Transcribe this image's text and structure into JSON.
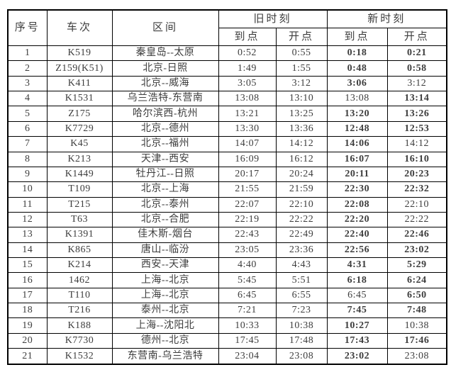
{
  "page": {
    "background": "#ffffff",
    "border_color": "#000000",
    "text_color": "#3d3d3d",
    "changed_time_color": "#000000"
  },
  "table": {
    "headers": {
      "serial": "序号",
      "train": "车次",
      "route": "区间",
      "old_group": "旧时刻",
      "new_group": "新时刻",
      "arrive": "到点",
      "depart": "开点"
    },
    "rows": [
      {
        "no": "1",
        "train": "K519",
        "route": "秦皇岛--太原",
        "old_arrive": "0:52",
        "old_depart": "0:55",
        "new_arrive": "0:18",
        "new_depart": "0:21",
        "new_arrive_changed": true,
        "new_depart_changed": true
      },
      {
        "no": "2",
        "train": "Z159(K51)",
        "route": "北京-日照",
        "old_arrive": "1:49",
        "old_depart": "1:55",
        "new_arrive": "0:48",
        "new_depart": "0:58",
        "new_arrive_changed": true,
        "new_depart_changed": true
      },
      {
        "no": "3",
        "train": "K411",
        "route": "北京--威海",
        "old_arrive": "3:05",
        "old_depart": "3:12",
        "new_arrive": "3:06",
        "new_depart": "3:12",
        "new_arrive_changed": true,
        "new_depart_changed": false
      },
      {
        "no": "4",
        "train": "K1531",
        "route": "乌兰浩特-东营南",
        "old_arrive": "13:08",
        "old_depart": "13:10",
        "new_arrive": "13:08",
        "new_depart": "13:14",
        "new_arrive_changed": false,
        "new_depart_changed": true
      },
      {
        "no": "5",
        "train": "Z175",
        "route": "哈尔滨西-杭州",
        "old_arrive": "13:21",
        "old_depart": "13:25",
        "new_arrive": "13:20",
        "new_depart": "13:26",
        "new_arrive_changed": true,
        "new_depart_changed": true
      },
      {
        "no": "6",
        "train": "K7729",
        "route": "北京--德州",
        "old_arrive": "13:30",
        "old_depart": "13:36",
        "new_arrive": "12:48",
        "new_depart": "12:53",
        "new_arrive_changed": true,
        "new_depart_changed": true
      },
      {
        "no": "7",
        "train": "K45",
        "route": "北京--福州",
        "old_arrive": "14:07",
        "old_depart": "14:12",
        "new_arrive": "14:06",
        "new_depart": "14:12",
        "new_arrive_changed": true,
        "new_depart_changed": false
      },
      {
        "no": "8",
        "train": "K213",
        "route": "天津--西安",
        "old_arrive": "16:09",
        "old_depart": "16:12",
        "new_arrive": "16:07",
        "new_depart": "16:10",
        "new_arrive_changed": true,
        "new_depart_changed": true
      },
      {
        "no": "9",
        "train": "K1449",
        "route": "牡丹江--日照",
        "old_arrive": "20:17",
        "old_depart": "20:24",
        "new_arrive": "20:11",
        "new_depart": "20:23",
        "new_arrive_changed": true,
        "new_depart_changed": true
      },
      {
        "no": "10",
        "train": "T109",
        "route": "北京--上海",
        "old_arrive": "21:55",
        "old_depart": "21:59",
        "new_arrive": "22:30",
        "new_depart": "22:32",
        "new_arrive_changed": true,
        "new_depart_changed": true
      },
      {
        "no": "11",
        "train": "T215",
        "route": "北京--泰州",
        "old_arrive": "22:07",
        "old_depart": "22:10",
        "new_arrive": "22:08",
        "new_depart": "22:10",
        "new_arrive_changed": true,
        "new_depart_changed": false
      },
      {
        "no": "12",
        "train": "T63",
        "route": "北京--合肥",
        "old_arrive": "22:19",
        "old_depart": "22:22",
        "new_arrive": "22:20",
        "new_depart": "22:22",
        "new_arrive_changed": true,
        "new_depart_changed": false
      },
      {
        "no": "13",
        "train": "K1391",
        "route": "佳木斯-烟台",
        "old_arrive": "22:43",
        "old_depart": "22:49",
        "new_arrive": "22:40",
        "new_depart": "22:46",
        "new_arrive_changed": true,
        "new_depart_changed": true
      },
      {
        "no": "14",
        "train": "K865",
        "route": "唐山--临汾",
        "old_arrive": "23:05",
        "old_depart": "23:36",
        "new_arrive": "22:56",
        "new_depart": "23:02",
        "new_arrive_changed": true,
        "new_depart_changed": true
      },
      {
        "no": "15",
        "train": "K214",
        "route": "西安--天津",
        "old_arrive": "4:40",
        "old_depart": "4:43",
        "new_arrive": "4:31",
        "new_depart": "5:29",
        "new_arrive_changed": true,
        "new_depart_changed": true
      },
      {
        "no": "16",
        "train": "1462",
        "route": "上海--北京",
        "old_arrive": "5:45",
        "old_depart": "5:51",
        "new_arrive": "6:18",
        "new_depart": "6:24",
        "new_arrive_changed": true,
        "new_depart_changed": true
      },
      {
        "no": "17",
        "train": "T110",
        "route": "上海--北京",
        "old_arrive": "6:45",
        "old_depart": "6:55",
        "new_arrive": "6:45",
        "new_depart": "6:50",
        "new_arrive_changed": false,
        "new_depart_changed": true
      },
      {
        "no": "18",
        "train": "T216",
        "route": "泰州--北京",
        "old_arrive": "7:21",
        "old_depart": "7:23",
        "new_arrive": "7:45",
        "new_depart": "7:48",
        "new_arrive_changed": true,
        "new_depart_changed": true
      },
      {
        "no": "19",
        "train": "K188",
        "route": "上海--沈阳北",
        "old_arrive": "10:33",
        "old_depart": "10:38",
        "new_arrive": "10:27",
        "new_depart": "10:38",
        "new_arrive_changed": true,
        "new_depart_changed": false
      },
      {
        "no": "20",
        "train": "K7730",
        "route": "德州--北京",
        "old_arrive": "17:45",
        "old_depart": "17:48",
        "new_arrive": "17:43",
        "new_depart": "17:46",
        "new_arrive_changed": true,
        "new_depart_changed": true
      },
      {
        "no": "21",
        "train": "K1532",
        "route": "东营南-乌兰浩特",
        "old_arrive": "23:04",
        "old_depart": "23:08",
        "new_arrive": "23:02",
        "new_depart": "23:08",
        "new_arrive_changed": true,
        "new_depart_changed": false
      }
    ]
  }
}
